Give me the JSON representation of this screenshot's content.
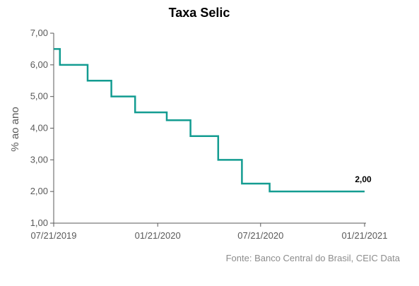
{
  "chart_data": {
    "type": "line",
    "title": "Taxa Selic",
    "ylabel": "% ao ano",
    "xlabel": "",
    "ylim": [
      1.0,
      7.0
    ],
    "yticks": [
      1.0,
      2.0,
      3.0,
      4.0,
      5.0,
      6.0,
      7.0
    ],
    "ytick_labels": [
      "1,00",
      "2,00",
      "3,00",
      "4,00",
      "5,00",
      "6,00",
      "7,00"
    ],
    "xlim": [
      "2019-07-21",
      "2021-01-21"
    ],
    "xticks": [
      "2019-07-21",
      "2020-01-21",
      "2020-07-21",
      "2021-01-21"
    ],
    "xtick_labels": [
      "07/21/2019",
      "01/21/2020",
      "07/21/2020",
      "01/21/2021"
    ],
    "step": true,
    "color": "#139c91",
    "series": [
      {
        "x": [
          "2019-07-21",
          "2019-08-01",
          "2019-09-19",
          "2019-10-31",
          "2019-12-12",
          "2020-02-06",
          "2020-03-19",
          "2020-05-07",
          "2020-06-18",
          "2020-08-06",
          "2021-01-21"
        ],
        "values": [
          6.5,
          6.0,
          5.5,
          5.0,
          4.5,
          4.25,
          3.75,
          3.0,
          2.25,
          2.0,
          2.0
        ]
      }
    ],
    "data_labels": [
      {
        "x": "2021-01-21",
        "value": 2.0,
        "text": "2,00"
      }
    ],
    "grid": false,
    "legend": "none",
    "source": "Fonte: Banco Central do Brasil, CEIC Data"
  }
}
